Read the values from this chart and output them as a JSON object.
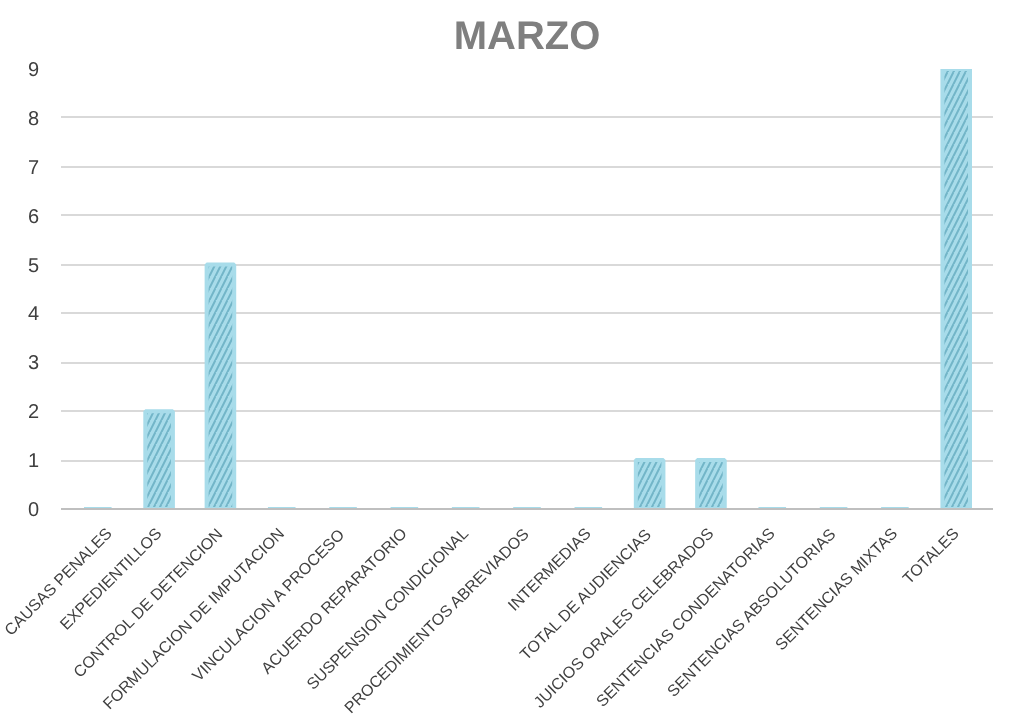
{
  "chart_data": {
    "type": "bar",
    "title": "MARZO",
    "categories": [
      "CAUSAS PENALES",
      "EXPEDIENTILLOS",
      "CONTROL DE DETENCION",
      "FORMULACION DE IMPUTACION",
      "VINCULACION A PROCESO",
      "ACUERDO REPARATORIO",
      "SUSPENSION CONDICIONAL",
      "PROCEDIMIENTOS ABREVIADOS",
      "INTERMEDIAS",
      "TOTAL DE AUDIENCIAS",
      "JUICIOS ORALES CELEBRADOS",
      "SENTENCIAS CONDENATORIAS",
      "SENTENCIAS ABSOLUTORIAS",
      "SENTENCIAS MIXTAS",
      "TOTALES"
    ],
    "values": [
      0,
      2,
      5,
      0,
      0,
      0,
      0,
      0,
      0,
      1,
      1,
      0,
      0,
      0,
      9
    ],
    "color": "#a8dcea",
    "ylim": [
      0,
      9
    ],
    "yticks": [
      0,
      1,
      2,
      3,
      4,
      5,
      6,
      7,
      8,
      9
    ],
    "grid": "y"
  }
}
